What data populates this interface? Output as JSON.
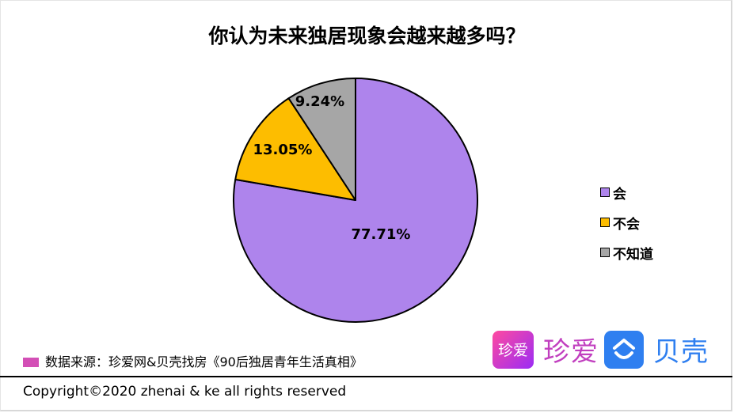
{
  "title": "你认为未来独居现象会越来越多吗？",
  "chart_data": {
    "type": "pie",
    "title": "你认为未来独居现象会越来越多吗？",
    "categories": [
      "会",
      "不会",
      "不知道"
    ],
    "values": [
      77.71,
      13.05,
      9.24
    ],
    "unit": "%",
    "colors": [
      "#ae84ec",
      "#fdbd00",
      "#a6a6a6"
    ],
    "data_labels": [
      "77.71%",
      "13.05%",
      "9.24%"
    ],
    "start_angle": "12 o'clock, clockwise",
    "legend_position": "right"
  },
  "legend": {
    "items": [
      {
        "label": "会",
        "color": "#ae84ec"
      },
      {
        "label": "不会",
        "color": "#fdbd00"
      },
      {
        "label": "不知道",
        "color": "#a6a6a6"
      }
    ]
  },
  "source": {
    "text": "数据来源：珍爱网&贝壳找房《90后独居青年生活真相》",
    "mark_color": "#d34fb6"
  },
  "logos": {
    "zhenai_box": "珍爱",
    "zhenai_text": "珍爱",
    "ke_text": "贝壳"
  },
  "footer": {
    "copyright": "Copyright©2020 zhenai & ke all rights reserved"
  }
}
